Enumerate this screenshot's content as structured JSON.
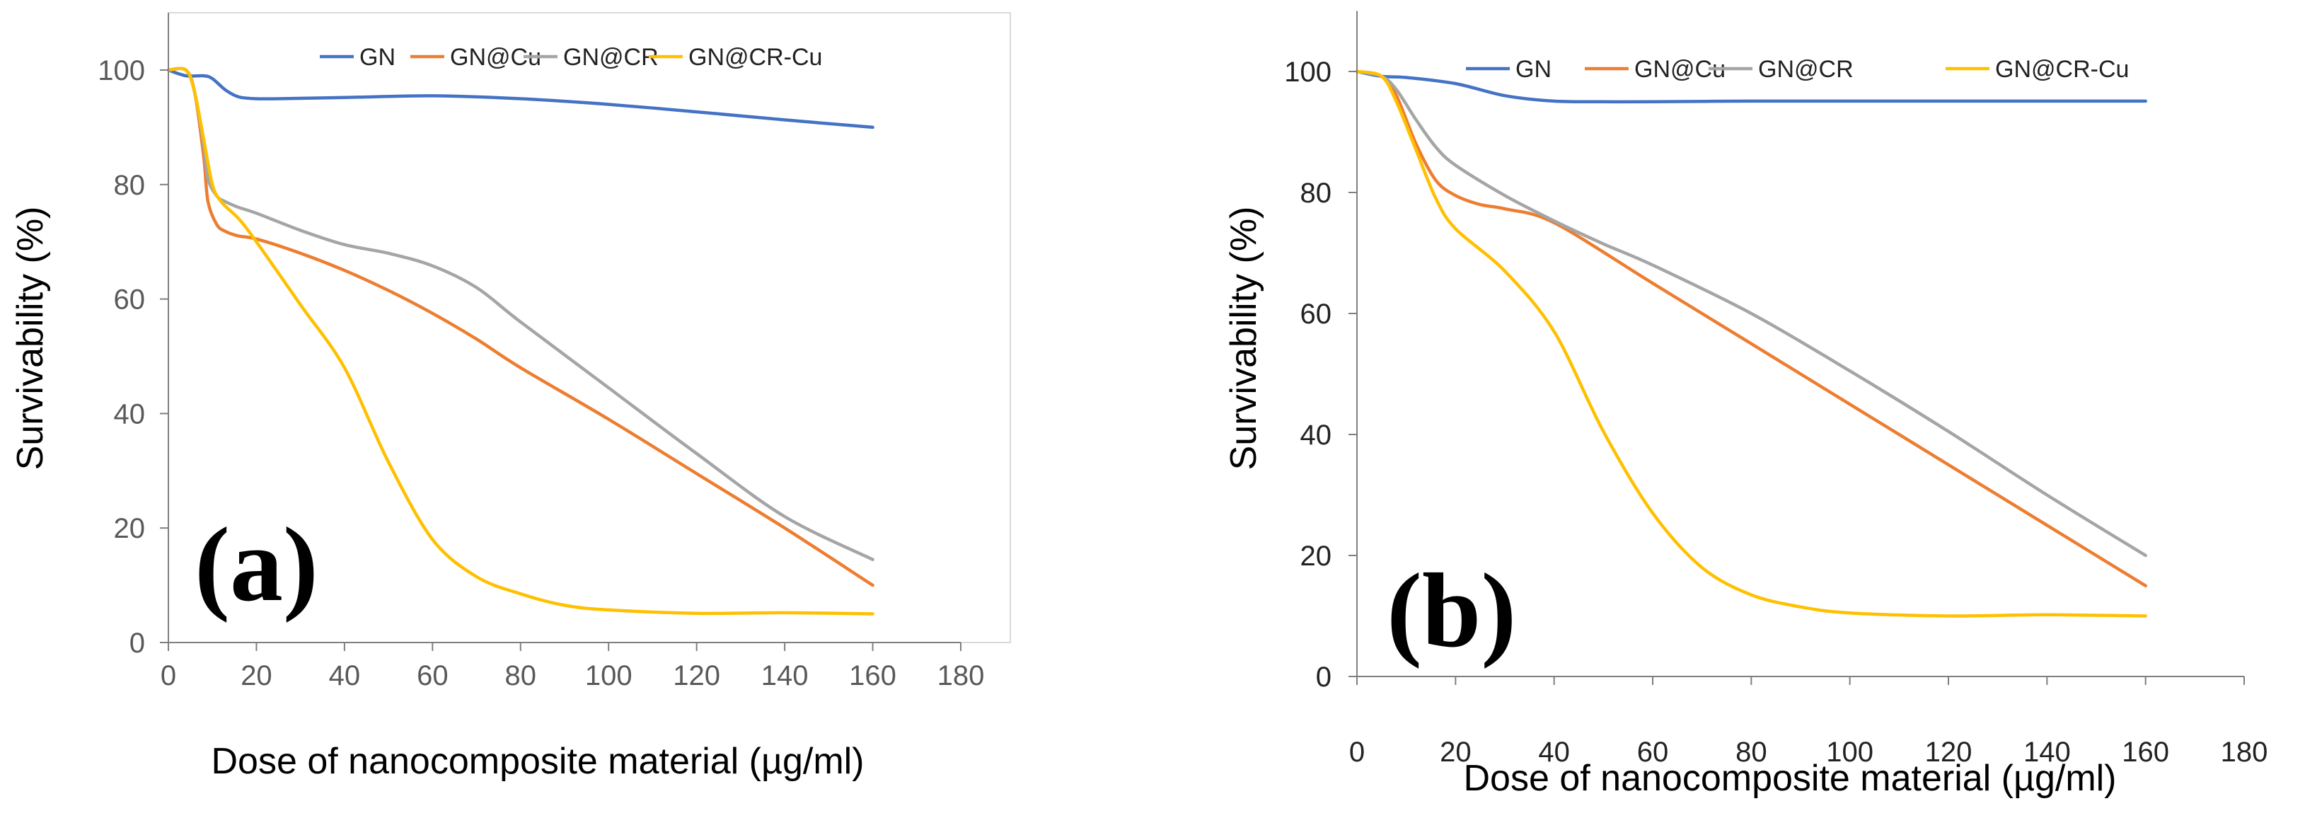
{
  "chart_data": [
    {
      "type": "line",
      "panel_label": "(a)",
      "xlabel": "Dose  of nanocomposite material (µg/ml)",
      "ylabel": "Survivability  (%)",
      "xlim": [
        0,
        180
      ],
      "ylim": [
        0,
        110
      ],
      "xticks": [
        0,
        20,
        40,
        60,
        80,
        100,
        120,
        140,
        160,
        180
      ],
      "yticks": [
        0,
        20,
        40,
        60,
        80,
        100
      ],
      "legend_position": "top",
      "grid": false,
      "series": [
        {
          "name": "GN",
          "color": "#4472C4",
          "x": [
            0,
            4,
            8,
            10,
            13,
            16,
            20,
            25,
            40,
            60,
            80,
            100,
            120,
            140,
            160
          ],
          "y": [
            100,
            99,
            99,
            98.5,
            96.5,
            95.3,
            95,
            95,
            95.2,
            95.5,
            95,
            94,
            92.7,
            91.3,
            90
          ]
        },
        {
          "name": "GN@Cu",
          "color": "#ED7D31",
          "x": [
            0,
            4,
            6,
            8,
            9,
            11,
            13,
            16,
            20,
            30,
            40,
            50,
            60,
            70,
            80,
            100,
            120,
            140,
            160
          ],
          "y": [
            100,
            100,
            96,
            85,
            77,
            73,
            71.8,
            71,
            70.5,
            68,
            65,
            61.5,
            57.5,
            53,
            48,
            39,
            29.5,
            20,
            10
          ]
        },
        {
          "name": "GN@CR",
          "color": "#A5A5A5",
          "x": [
            0,
            4,
            6,
            8,
            9,
            11,
            13,
            16,
            20,
            30,
            40,
            50,
            60,
            70,
            80,
            100,
            120,
            140,
            160
          ],
          "y": [
            100,
            100,
            96,
            87,
            81,
            78,
            77,
            76,
            75,
            72,
            69.5,
            68,
            65.8,
            62,
            56,
            44.5,
            33,
            22,
            14.5
          ]
        },
        {
          "name": "GN@CR-Cu",
          "color": "#FFC000",
          "x": [
            0,
            4,
            6,
            8,
            10,
            12,
            16,
            20,
            30,
            40,
            50,
            60,
            70,
            80,
            90,
            100,
            120,
            140,
            160
          ],
          "y": [
            100,
            100,
            96,
            88,
            80,
            77,
            74,
            70,
            59,
            48,
            31.5,
            18,
            11.5,
            8.5,
            6.5,
            5.7,
            5.1,
            5.2,
            5
          ]
        }
      ]
    },
    {
      "type": "line",
      "panel_label": "(b)",
      "xlabel": "Dose  of nanocomposite material (µg/ml)",
      "ylabel": "Survivability  (%)",
      "xlim": [
        0,
        180
      ],
      "ylim": [
        0,
        110
      ],
      "xticks": [
        0,
        20,
        40,
        60,
        80,
        100,
        120,
        140,
        160,
        180
      ],
      "yticks": [
        0,
        20,
        40,
        60,
        80,
        100
      ],
      "legend_position": "top",
      "grid": false,
      "series": [
        {
          "name": "GN",
          "color": "#4472C4",
          "x": [
            0,
            5,
            10,
            20,
            30,
            40,
            50,
            60,
            80,
            100,
            120,
            140,
            160
          ],
          "y": [
            100,
            99.2,
            99,
            98,
            96,
            95.1,
            95,
            95,
            95.1,
            95.1,
            95.1,
            95.1,
            95.1
          ]
        },
        {
          "name": "GN@Cu",
          "color": "#ED7D31",
          "x": [
            0,
            5,
            8,
            12,
            16,
            20,
            25,
            30,
            40,
            60,
            80,
            100,
            120,
            140,
            160
          ],
          "y": [
            100,
            99.2,
            96,
            88,
            82,
            79.5,
            78,
            77.3,
            75,
            65,
            55,
            45,
            35,
            25,
            15
          ]
        },
        {
          "name": "GN@CR",
          "color": "#A5A5A5",
          "x": [
            0,
            5,
            8,
            12,
            16,
            20,
            30,
            40,
            50,
            60,
            80,
            100,
            120,
            140,
            160
          ],
          "y": [
            100,
            99.2,
            97,
            92,
            87.5,
            84.5,
            79.5,
            75.3,
            71.5,
            68,
            60,
            50.5,
            40.5,
            30,
            20
          ]
        },
        {
          "name": "GN@CR-Cu",
          "color": "#FFC000",
          "x": [
            0,
            5,
            8,
            12,
            16,
            20,
            30,
            40,
            50,
            60,
            70,
            80,
            90,
            100,
            120,
            140,
            160
          ],
          "y": [
            100,
            99.2,
            95,
            87,
            79,
            74,
            67,
            57,
            40.5,
            27,
            18,
            13.5,
            11.5,
            10.5,
            10,
            10.2,
            10
          ]
        }
      ]
    }
  ]
}
